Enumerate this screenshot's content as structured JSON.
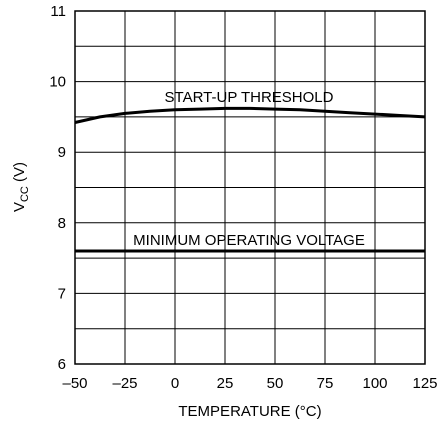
{
  "chart_data": {
    "type": "line",
    "title": "",
    "xlabel": "TEMPERATURE (°C)",
    "ylabel_main": "V",
    "ylabel_sub": "CC",
    "ylabel_unit": " (V)",
    "xlim": [
      -50,
      125
    ],
    "ylim": [
      6,
      11
    ],
    "grid": true,
    "x_ticks": [
      -50,
      -25,
      0,
      25,
      50,
      75,
      100,
      125
    ],
    "x_tick_labels": [
      "–50",
      "–25",
      "0",
      "25",
      "50",
      "75",
      "100",
      "125"
    ],
    "y_ticks": [
      6,
      7,
      8,
      9,
      10,
      11
    ],
    "y_tick_labels": [
      "6",
      "7",
      "8",
      "9",
      "10",
      "11"
    ],
    "series": [
      {
        "name": "START-UP THRESHOLD",
        "x": [
          -50,
          -37.5,
          -25,
          -12.5,
          0,
          12.5,
          25,
          37.5,
          50,
          62.5,
          75,
          87.5,
          100,
          112.5,
          125
        ],
        "values": [
          9.42,
          9.5,
          9.55,
          9.58,
          9.6,
          9.61,
          9.62,
          9.62,
          9.61,
          9.6,
          9.58,
          9.56,
          9.54,
          9.52,
          9.5
        ]
      },
      {
        "name": "MINIMUM OPERATING VOLTAGE",
        "x": [
          -50,
          125
        ],
        "values": [
          7.6,
          7.6
        ]
      }
    ]
  }
}
